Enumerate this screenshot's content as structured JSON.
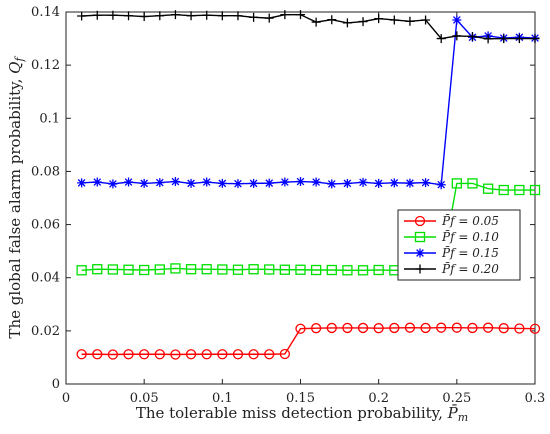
{
  "chart_data": {
    "type": "line",
    "xlabel": "The tolerable miss detection probability, P̄m",
    "ylabel": "The global false alarm probability, Qf",
    "xlim": [
      0,
      0.3
    ],
    "ylim": [
      0,
      0.14
    ],
    "x_ticks": [
      "0",
      "0.05",
      "0.1",
      "0.15",
      "0.2",
      "0.25",
      "0.3"
    ],
    "y_ticks": [
      "0",
      "0.02",
      "0.04",
      "0.06",
      "0.08",
      "0.1",
      "0.12",
      "0.14"
    ],
    "grid": false,
    "legend_position": "right, vertically centered",
    "x": [
      0.01,
      0.02,
      0.03,
      0.04,
      0.05,
      0.06,
      0.07,
      0.08,
      0.09,
      0.1,
      0.11,
      0.12,
      0.13,
      0.14,
      0.15,
      0.16,
      0.17,
      0.18,
      0.19,
      0.2,
      0.21,
      0.22,
      0.23,
      0.24,
      0.25,
      0.26,
      0.27,
      0.28,
      0.29,
      0.3
    ],
    "series": [
      {
        "name": "P̄f = 0.05",
        "color": "#ff0000",
        "marker": "circle",
        "values": [
          0.0112,
          0.0112,
          0.0111,
          0.0112,
          0.0112,
          0.0112,
          0.0111,
          0.0112,
          0.0112,
          0.0112,
          0.0112,
          0.0112,
          0.0112,
          0.0113,
          0.0208,
          0.021,
          0.0211,
          0.0211,
          0.0211,
          0.021,
          0.0211,
          0.0212,
          0.0211,
          0.0212,
          0.0212,
          0.0211,
          0.0212,
          0.021,
          0.0209,
          0.0208
        ]
      },
      {
        "name": "P̄f = 0.10",
        "color": "#00e000",
        "marker": "square",
        "values": [
          0.0428,
          0.0432,
          0.0431,
          0.043,
          0.0429,
          0.0431,
          0.0435,
          0.0432,
          0.0432,
          0.0431,
          0.043,
          0.0432,
          0.0431,
          0.043,
          0.043,
          0.0429,
          0.0429,
          0.0428,
          0.0428,
          0.0429,
          0.0428,
          0.0428,
          0.0427,
          0.0427,
          0.0755,
          0.0755,
          0.0735,
          0.073,
          0.073,
          0.073
        ]
      },
      {
        "name": "P̄f = 0.15",
        "color": "#0000ff",
        "marker": "asterisk",
        "values": [
          0.0757,
          0.076,
          0.0753,
          0.076,
          0.0755,
          0.0758,
          0.0762,
          0.0755,
          0.076,
          0.0755,
          0.0754,
          0.0755,
          0.0756,
          0.076,
          0.0762,
          0.076,
          0.0753,
          0.0755,
          0.0759,
          0.0755,
          0.0757,
          0.0756,
          0.0758,
          0.075,
          0.137,
          0.1305,
          0.131,
          0.1302,
          0.1305,
          0.1302
        ]
      },
      {
        "name": "P̄f = 0.20",
        "color": "#000000",
        "marker": "plus",
        "values": [
          0.1385,
          0.1388,
          0.1388,
          0.1386,
          0.1383,
          0.1386,
          0.139,
          0.1386,
          0.1388,
          0.1386,
          0.1386,
          0.138,
          0.1377,
          0.139,
          0.139,
          0.1362,
          0.1371,
          0.1359,
          0.1364,
          0.1375,
          0.137,
          0.1365,
          0.137,
          0.13,
          0.131,
          0.1308,
          0.1299,
          0.13,
          0.13,
          0.13
        ]
      }
    ]
  }
}
